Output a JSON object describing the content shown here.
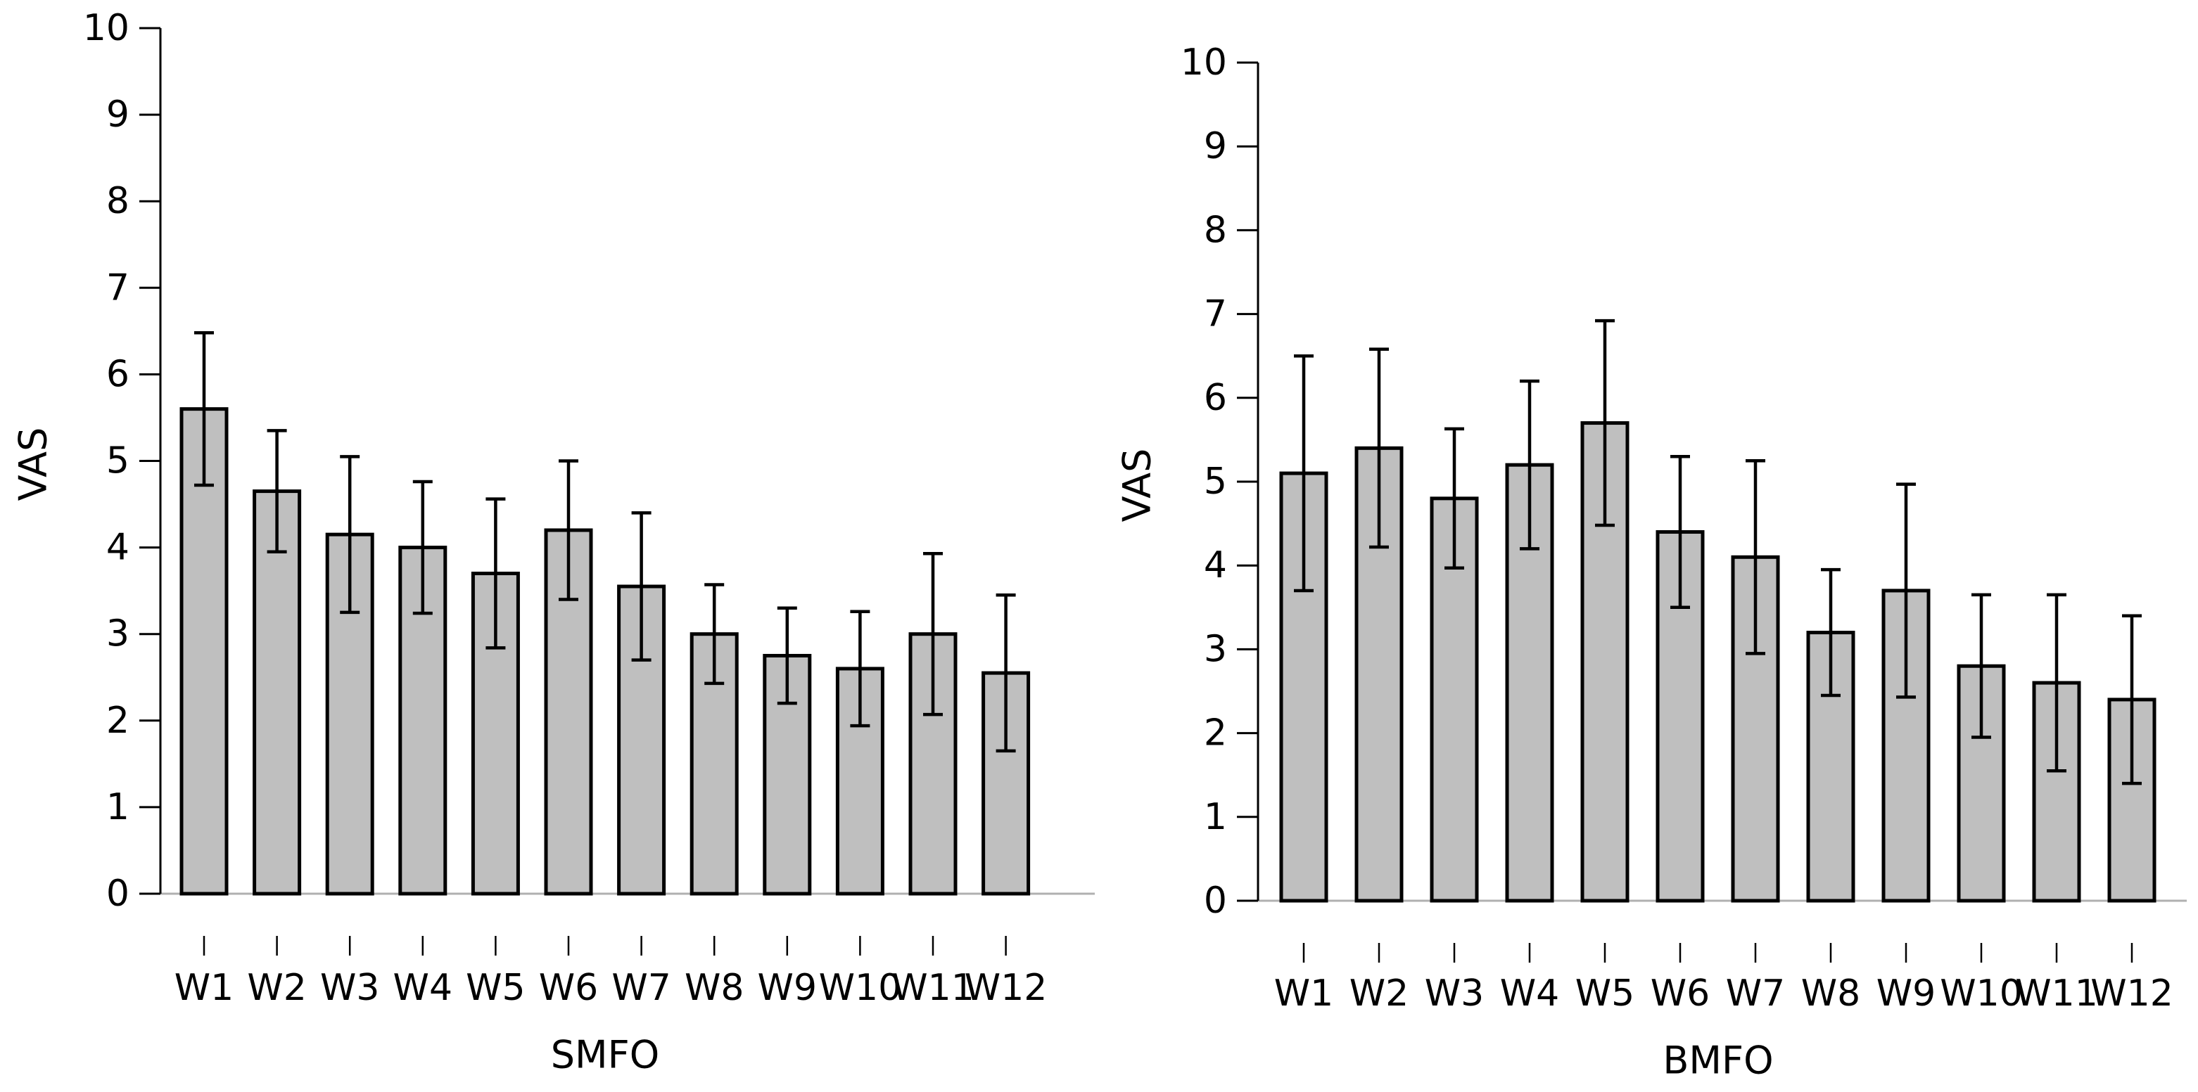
{
  "page": {
    "background": "#ffffff",
    "title": ""
  },
  "chart_data": [
    {
      "type": "bar",
      "panel": "left",
      "title": "",
      "xlabel": "SMFO",
      "ylabel": "VAS",
      "categories": [
        "W1",
        "W2",
        "W3",
        "W4",
        "W5",
        "W6",
        "W7",
        "W8",
        "W9",
        "W10",
        "W11",
        "W12"
      ],
      "values": [
        5.6,
        4.65,
        4.15,
        4.0,
        3.7,
        4.2,
        3.55,
        3.0,
        2.75,
        2.6,
        3.0,
        2.55
      ],
      "errors": [
        0.88,
        0.7,
        0.9,
        0.76,
        0.86,
        0.8,
        0.85,
        0.57,
        0.55,
        0.66,
        0.93,
        0.9
      ],
      "ylim": [
        0,
        10
      ],
      "yticks": [
        0,
        1,
        2,
        3,
        4,
        5,
        6,
        7,
        8,
        9,
        10
      ],
      "grid": false,
      "legend": "none",
      "bar_fill": "#bfbfbf",
      "bar_edge": "#000000",
      "error_color": "#000000",
      "baseline_color": "#b0b0b0"
    },
    {
      "type": "bar",
      "panel": "right",
      "title": "",
      "xlabel": "BMFO",
      "ylabel": "VAS",
      "categories": [
        "W1",
        "W2",
        "W3",
        "W4",
        "W5",
        "W6",
        "W7",
        "W8",
        "W9",
        "W10",
        "W11",
        "W12"
      ],
      "values": [
        5.1,
        5.4,
        4.8,
        5.2,
        5.7,
        4.4,
        4.1,
        3.2,
        3.7,
        2.8,
        2.6,
        2.4
      ],
      "errors": [
        1.4,
        1.18,
        0.83,
        1.0,
        1.22,
        0.9,
        1.15,
        0.75,
        1.27,
        0.85,
        1.05,
        1.0
      ],
      "ylim": [
        0,
        10
      ],
      "yticks": [
        0,
        1,
        2,
        3,
        4,
        5,
        6,
        7,
        8,
        9,
        10
      ],
      "grid": false,
      "legend": "none",
      "bar_fill": "#bfbfbf",
      "bar_edge": "#000000",
      "error_color": "#000000",
      "baseline_color": "#b0b0b0"
    }
  ]
}
